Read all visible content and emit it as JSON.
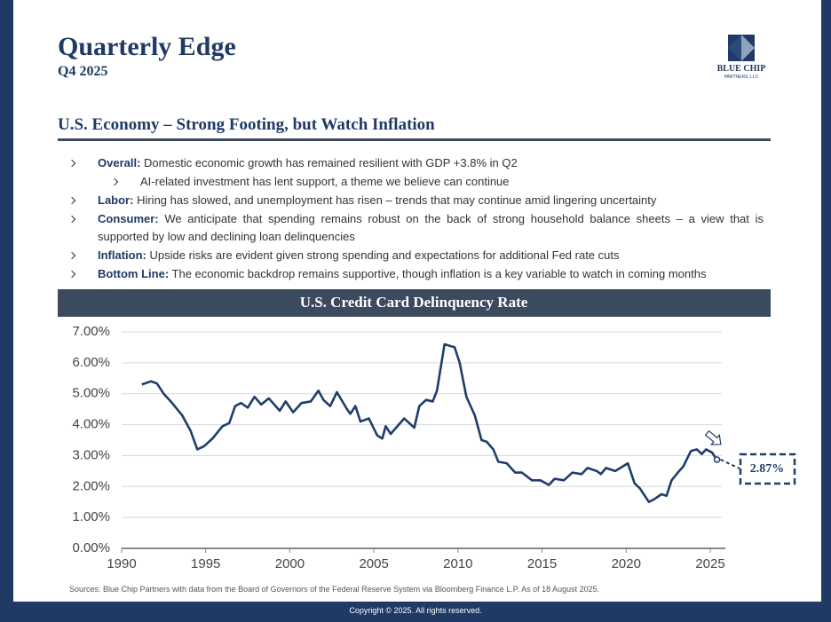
{
  "header": {
    "title": "Quarterly Edge",
    "subtitle": "Q4 2025"
  },
  "logo": {
    "name": "BLUE CHIP",
    "tagline": "PARTNERS, LLC"
  },
  "section_title": "U.S. Economy – Strong Footing, but Watch Inflation",
  "bullets": [
    {
      "label": "Overall:",
      "text": "Domestic economic growth has remained resilient with GDP +3.8% in Q2",
      "sub": [
        "AI-related investment has lent support, a theme we believe can continue"
      ]
    },
    {
      "label": "Labor:",
      "text": "Hiring has slowed, and unemployment has risen – trends that may continue amid lingering uncertainty"
    },
    {
      "label": "Consumer:",
      "text": "We anticipate that spending remains robust on the back of strong household balance sheets – a view that is supported by low and declining loan delinquencies"
    },
    {
      "label": "Inflation:",
      "text": "Upside risks are evident given strong spending and expectations for additional Fed rate cuts"
    },
    {
      "label": "Bottom Line:",
      "text": "The economic backdrop remains supportive, though inflation is a key variable to watch in coming months"
    }
  ],
  "chart_data": {
    "type": "line",
    "title": "U.S. Credit Card Delinquency Rate",
    "x": [
      1991.2,
      1991.75,
      1992.1,
      1992.5,
      1993.0,
      1993.6,
      1994.1,
      1994.5,
      1994.9,
      1995.4,
      1996.0,
      1996.4,
      1996.75,
      1997.1,
      1997.5,
      1997.9,
      1998.3,
      1998.75,
      1999.4,
      1999.75,
      2000.2,
      2000.7,
      2001.25,
      2001.7,
      2002.0,
      2002.4,
      2002.8,
      2003.4,
      2003.6,
      2003.9,
      2004.2,
      2004.7,
      2005.2,
      2005.5,
      2005.7,
      2006.0,
      2006.8,
      2007.4,
      2007.7,
      2008.1,
      2008.5,
      2008.75,
      2009.2,
      2009.8,
      2010.1,
      2010.5,
      2011.0,
      2011.4,
      2011.7,
      2012.1,
      2012.4,
      2012.9,
      2013.4,
      2013.8,
      2014.4,
      2014.9,
      2015.4,
      2015.75,
      2016.3,
      2016.8,
      2017.35,
      2017.7,
      2018.25,
      2018.5,
      2018.8,
      2019.35,
      2020.1,
      2020.5,
      2020.8,
      2021.35,
      2021.7,
      2022.1,
      2022.4,
      2022.7,
      2023.15,
      2023.4,
      2023.85,
      2024.2,
      2024.5,
      2024.75,
      2025.1,
      2025.4
    ],
    "series": [
      {
        "name": "Credit Card Delinquency Rate",
        "color": "#1f3d6b",
        "values": [
          5.3,
          5.4,
          5.33,
          5.0,
          4.7,
          4.3,
          3.8,
          3.2,
          3.3,
          3.55,
          3.95,
          4.05,
          4.6,
          4.7,
          4.55,
          4.9,
          4.65,
          4.85,
          4.45,
          4.75,
          4.4,
          4.7,
          4.75,
          5.1,
          4.8,
          4.6,
          5.05,
          4.5,
          4.35,
          4.6,
          4.1,
          4.2,
          3.65,
          3.55,
          3.95,
          3.7,
          4.2,
          3.9,
          4.6,
          4.8,
          4.75,
          5.1,
          6.6,
          6.5,
          6.0,
          4.9,
          4.3,
          3.5,
          3.45,
          3.2,
          2.8,
          2.75,
          2.45,
          2.45,
          2.2,
          2.2,
          2.05,
          2.25,
          2.2,
          2.45,
          2.4,
          2.6,
          2.5,
          2.4,
          2.6,
          2.5,
          2.75,
          2.1,
          1.95,
          1.5,
          1.6,
          1.75,
          1.7,
          2.2,
          2.5,
          2.65,
          3.15,
          3.2,
          3.05,
          3.2,
          3.1,
          2.87
        ]
      }
    ],
    "xlim": [
      1990,
      2025.9
    ],
    "xticks": [
      1990,
      1995,
      2000,
      2005,
      2010,
      2015,
      2020,
      2025
    ],
    "ylim": [
      0,
      7
    ],
    "yticks": [
      {
        "value": 0,
        "label": "0.00%"
      },
      {
        "value": 1,
        "label": "1.00%"
      },
      {
        "value": 2,
        "label": "2.00%"
      },
      {
        "value": 3,
        "label": "3.00%"
      },
      {
        "value": 4,
        "label": "4.00%"
      },
      {
        "value": 5,
        "label": "5.00%"
      },
      {
        "value": 6,
        "label": "6.00%"
      },
      {
        "value": 7,
        "label": "7.00%"
      }
    ],
    "grid": true,
    "annotation": "2.87%",
    "source": "Sources: Blue Chip Partners with data from the Board of Governors of the Federal Reserve System via Bloomberg Finance L.P. As of 18 August 2025."
  },
  "footer": "Copyright © 2025. All rights reserved."
}
